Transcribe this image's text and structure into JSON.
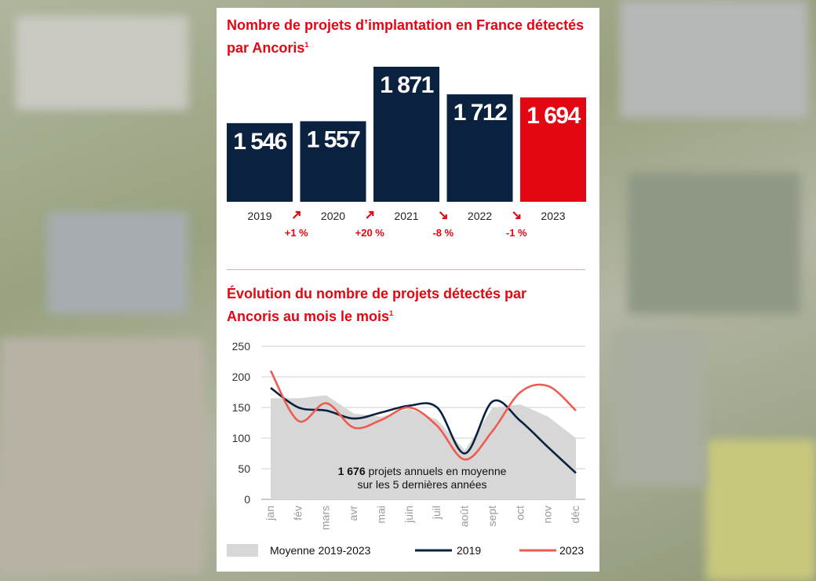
{
  "bar_section": {
    "title": "Nombre de projets d’implantation en France détectés par Ancoris",
    "footnote_mark": "1"
  },
  "line_section": {
    "title": "Évolution du nombre de projets détectés par Ancoris au mois le mois",
    "footnote_mark": "1",
    "annotation_line1_bold": "1 676",
    "annotation_line1_rest": " projets annuels en moyenne",
    "annotation_line2": "sur les 5 dernières années"
  },
  "colors": {
    "navy": "#0b2140",
    "red": "#e30613",
    "salmon": "#ef5b50",
    "area": "#d7d7d7",
    "background": "#ffffff"
  },
  "chart_data": [
    {
      "type": "bar",
      "categories": [
        "2019",
        "2020",
        "2021",
        "2022",
        "2023"
      ],
      "values": [
        1546,
        1557,
        1871,
        1712,
        1694
      ],
      "value_labels": [
        "1 546",
        "1 557",
        "1 871",
        "1 712",
        "1 694"
      ],
      "bar_colors": [
        "#0b2140",
        "#0b2140",
        "#0b2140",
        "#0b2140",
        "#e30613"
      ],
      "changes": [
        {
          "label": "+1 %",
          "arrow": "up"
        },
        {
          "label": "+20 %",
          "arrow": "up"
        },
        {
          "label": "-8 %",
          "arrow": "down"
        },
        {
          "label": "-1 %",
          "arrow": "down"
        }
      ]
    },
    {
      "type": "line",
      "x": [
        "jan",
        "fév",
        "mars",
        "avr",
        "mai",
        "juin",
        "juil",
        "août",
        "sept",
        "oct",
        "nov",
        "déc"
      ],
      "ylim": [
        0,
        250
      ],
      "yticks": [
        0,
        50,
        100,
        150,
        200,
        250
      ],
      "grid": true,
      "legend_position": "bottom",
      "series": [
        {
          "name": "Moyenne 2019-2023",
          "kind": "area",
          "color": "#d7d7d7",
          "values": [
            165,
            165,
            170,
            140,
            135,
            148,
            130,
            80,
            150,
            155,
            135,
            100
          ]
        },
        {
          "name": "2019",
          "kind": "line",
          "color": "#0b2140",
          "values": [
            182,
            150,
            145,
            132,
            142,
            153,
            150,
            75,
            160,
            128,
            85,
            43
          ]
        },
        {
          "name": "2023",
          "kind": "line",
          "color": "#ef5b50",
          "values": [
            210,
            128,
            157,
            117,
            130,
            150,
            120,
            65,
            112,
            175,
            185,
            145
          ]
        }
      ]
    }
  ]
}
